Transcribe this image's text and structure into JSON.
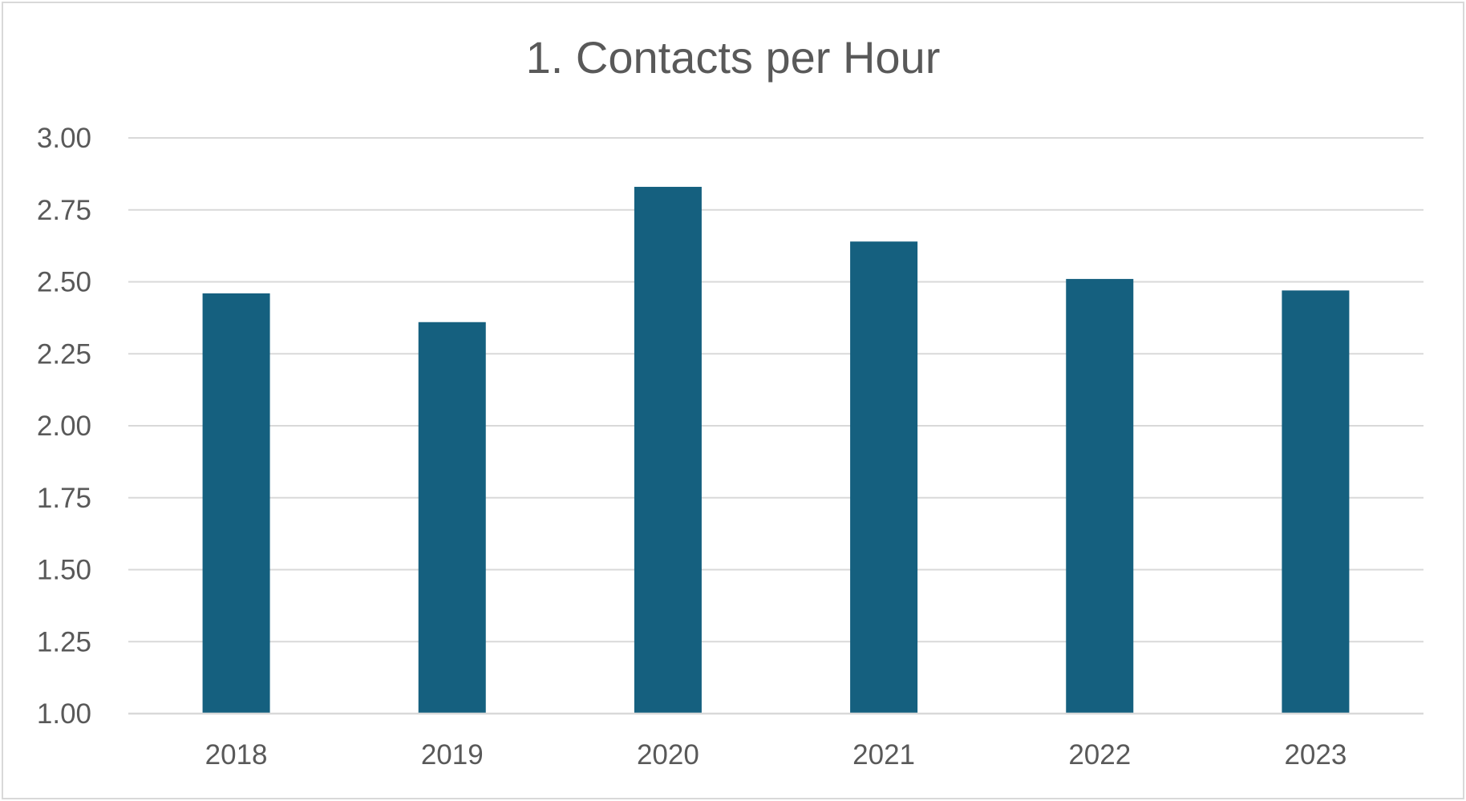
{
  "chart_data": {
    "type": "bar",
    "title": "1. Contacts per Hour",
    "categories": [
      "2018",
      "2019",
      "2020",
      "2021",
      "2022",
      "2023"
    ],
    "values": [
      2.46,
      2.36,
      2.83,
      2.64,
      2.51,
      2.47
    ],
    "ylim": [
      1.0,
      3.0
    ],
    "yticks": [
      "1.00",
      "1.25",
      "1.50",
      "1.75",
      "2.00",
      "2.25",
      "2.50",
      "2.75",
      "3.00"
    ],
    "xlabel": "",
    "ylabel": "",
    "grid": true,
    "legend": "none",
    "bar_color": "#15607f"
  }
}
